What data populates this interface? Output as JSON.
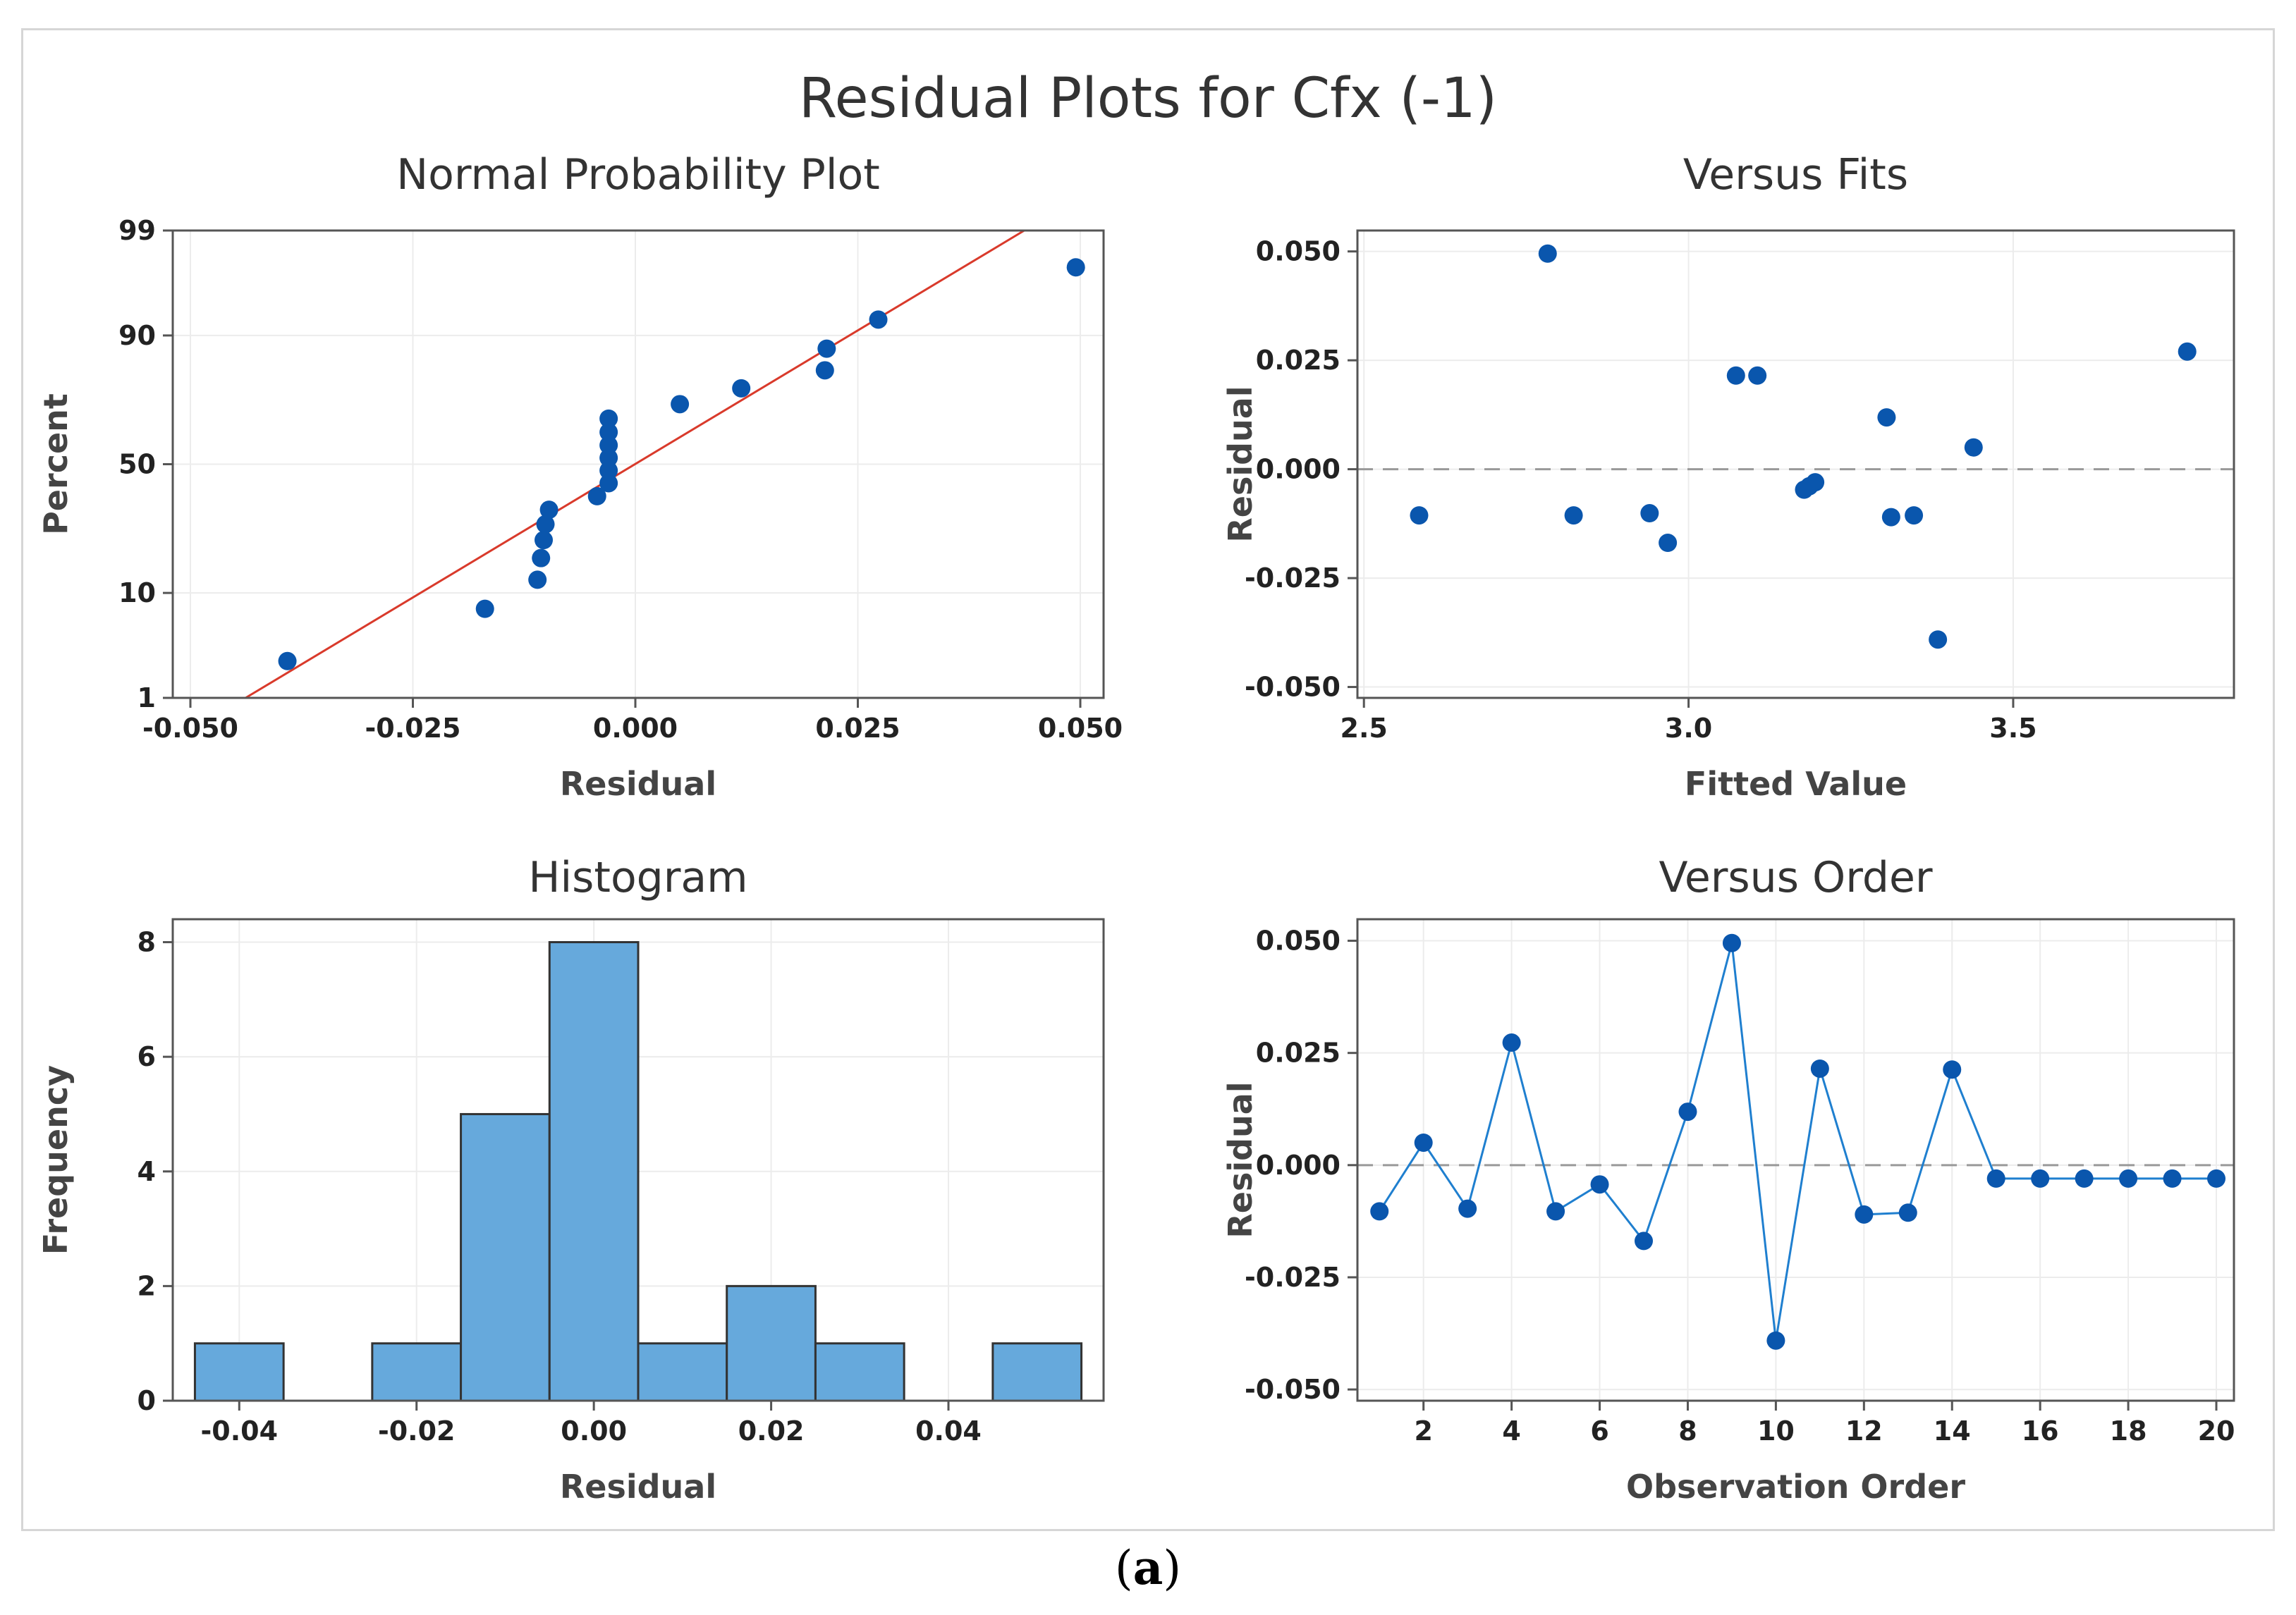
{
  "figure": {
    "title": "Residual Plots for Cfx (-1)",
    "caption_label": "a",
    "colors": {
      "points": "#0a56ad",
      "fit_line": "#d93a2b",
      "bars": "#66a9dc",
      "grid": "#ececec",
      "reference": "#999999"
    }
  },
  "chart_data": [
    {
      "type": "scatter",
      "title": "Normal Probability Plot",
      "xlabel": "Residual",
      "ylabel": "Percent",
      "xlim": [
        -0.05,
        0.05
      ],
      "xticks": [
        -0.05,
        -0.025,
        0.0,
        0.025,
        0.05
      ],
      "xtick_labels": [
        "-0.050",
        "-0.025",
        "0.000",
        "0.025",
        "0.050"
      ],
      "ytick_labels": [
        "1",
        "10",
        "50",
        "90",
        "99"
      ],
      "y_scale": "normal-probability",
      "fit_line": {
        "x": [
          -0.0438,
          0.0437
        ],
        "percent": [
          1,
          99
        ]
      },
      "points": [
        {
          "x": -0.0391,
          "percent": 2.5
        },
        {
          "x": -0.0169,
          "percent": 7.5
        },
        {
          "x": -0.011,
          "percent": 12.5
        },
        {
          "x": -0.0106,
          "percent": 17.5
        },
        {
          "x": -0.0103,
          "percent": 22.5
        },
        {
          "x": -0.0101,
          "percent": 27.5
        },
        {
          "x": -0.0097,
          "percent": 32.5
        },
        {
          "x": -0.0043,
          "percent": 37.5
        },
        {
          "x": -0.003,
          "percent": 42.5
        },
        {
          "x": -0.003,
          "percent": 47.5
        },
        {
          "x": -0.003,
          "percent": 52.5
        },
        {
          "x": -0.003,
          "percent": 57.5
        },
        {
          "x": -0.003,
          "percent": 62.5
        },
        {
          "x": -0.003,
          "percent": 67.5
        },
        {
          "x": 0.005,
          "percent": 72.5
        },
        {
          "x": 0.0119,
          "percent": 77.5
        },
        {
          "x": 0.0213,
          "percent": 82.5
        },
        {
          "x": 0.0215,
          "percent": 87.5
        },
        {
          "x": 0.0273,
          "percent": 92.5
        },
        {
          "x": 0.0495,
          "percent": 97.5
        }
      ]
    },
    {
      "type": "scatter",
      "title": "Versus Fits",
      "xlabel": "Fitted Value",
      "ylabel": "Residual",
      "xlim": [
        2.49,
        3.84
      ],
      "ylim": [
        -0.0525,
        0.0548
      ],
      "xticks": [
        2.5,
        3.0,
        3.5
      ],
      "xtick_labels": [
        "2.5",
        "3.0",
        "3.5"
      ],
      "yticks": [
        -0.05,
        -0.025,
        0.0,
        0.025,
        0.05
      ],
      "ytick_labels": [
        "-0.050",
        "-0.025",
        "0.000",
        "0.025",
        "0.050"
      ],
      "reference_line": 0.0,
      "x": [
        2.585,
        2.783,
        2.823,
        2.94,
        2.968,
        3.073,
        3.106,
        3.178,
        3.186,
        3.195,
        3.305,
        3.312,
        3.347,
        3.384,
        3.439,
        3.768
      ],
      "y": [
        -0.0106,
        0.0495,
        -0.0106,
        -0.0101,
        -0.0169,
        0.0215,
        0.0215,
        -0.0047,
        -0.0039,
        -0.003,
        0.0119,
        -0.011,
        -0.0106,
        -0.0391,
        0.005,
        0.027
      ]
    },
    {
      "type": "bar",
      "title": "Histogram",
      "xlabel": "Residual",
      "ylabel": "Frequency",
      "xlim": [
        -0.0475,
        0.0575
      ],
      "ylim": [
        0,
        8.4
      ],
      "xticks": [
        -0.04,
        -0.02,
        0.0,
        0.02,
        0.04
      ],
      "xtick_labels": [
        "-0.04",
        "-0.02",
        "0.00",
        "0.02",
        "0.04"
      ],
      "yticks": [
        0,
        2,
        4,
        6,
        8
      ],
      "ytick_labels": [
        "0",
        "2",
        "4",
        "6",
        "8"
      ],
      "bin_width": 0.01,
      "bin_centers": [
        -0.04,
        -0.03,
        -0.02,
        -0.01,
        0.0,
        0.01,
        0.02,
        0.03,
        0.04,
        0.05
      ],
      "values": [
        1,
        0,
        1,
        5,
        8,
        1,
        2,
        1,
        0,
        1
      ]
    },
    {
      "type": "line",
      "title": "Versus Order",
      "xlabel": "Observation Order",
      "ylabel": "Residual",
      "xlim": [
        0.5,
        20.4
      ],
      "ylim": [
        -0.0525,
        0.0548
      ],
      "xticks": [
        2,
        4,
        6,
        8,
        10,
        12,
        14,
        16,
        18,
        20
      ],
      "xtick_labels": [
        "2",
        "4",
        "6",
        "8",
        "10",
        "12",
        "14",
        "16",
        "18",
        "20"
      ],
      "yticks": [
        -0.05,
        -0.025,
        0.0,
        0.025,
        0.05
      ],
      "ytick_labels": [
        "-0.050",
        "-0.025",
        "0.000",
        "0.025",
        "0.050"
      ],
      "reference_line": 0.0,
      "x": [
        1,
        2,
        3,
        4,
        5,
        6,
        7,
        8,
        9,
        10,
        11,
        12,
        13,
        14,
        15,
        16,
        17,
        18,
        19,
        20
      ],
      "y": [
        -0.0103,
        0.005,
        -0.0097,
        0.0273,
        -0.0103,
        -0.0043,
        -0.0169,
        0.0119,
        0.0495,
        -0.0391,
        0.0215,
        -0.011,
        -0.0106,
        0.0213,
        -0.003,
        -0.003,
        -0.003,
        -0.003,
        -0.003,
        -0.003
      ]
    }
  ]
}
